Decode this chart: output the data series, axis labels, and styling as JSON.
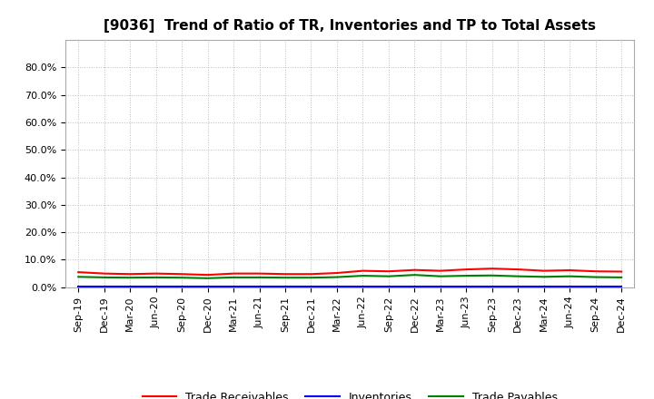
{
  "title": "[9036]  Trend of Ratio of TR, Inventories and TP to Total Assets",
  "x_labels": [
    "Sep-19",
    "Dec-19",
    "Mar-20",
    "Jun-20",
    "Sep-20",
    "Dec-20",
    "Mar-21",
    "Jun-21",
    "Sep-21",
    "Dec-21",
    "Mar-22",
    "Jun-22",
    "Sep-22",
    "Dec-22",
    "Mar-23",
    "Jun-23",
    "Sep-23",
    "Dec-23",
    "Mar-24",
    "Jun-24",
    "Sep-24",
    "Dec-24"
  ],
  "trade_receivables": [
    0.055,
    0.05,
    0.048,
    0.05,
    0.048,
    0.045,
    0.05,
    0.05,
    0.048,
    0.048,
    0.052,
    0.06,
    0.058,
    0.063,
    0.06,
    0.065,
    0.068,
    0.065,
    0.06,
    0.062,
    0.058,
    0.057
  ],
  "inventories": [
    0.002,
    0.002,
    0.002,
    0.002,
    0.002,
    0.002,
    0.002,
    0.002,
    0.002,
    0.002,
    0.002,
    0.002,
    0.002,
    0.002,
    0.002,
    0.002,
    0.002,
    0.002,
    0.002,
    0.002,
    0.002,
    0.002
  ],
  "trade_payables": [
    0.038,
    0.036,
    0.035,
    0.036,
    0.035,
    0.033,
    0.036,
    0.036,
    0.035,
    0.035,
    0.037,
    0.042,
    0.04,
    0.045,
    0.04,
    0.042,
    0.043,
    0.04,
    0.038,
    0.04,
    0.037,
    0.036
  ],
  "tr_color": "#ff0000",
  "inv_color": "#0000ff",
  "tp_color": "#008000",
  "ylim": [
    0.0,
    0.9
  ],
  "yticks": [
    0.0,
    0.1,
    0.2,
    0.3,
    0.4,
    0.5,
    0.6,
    0.7,
    0.8
  ],
  "background_color": "#ffffff",
  "grid_color": "#bbbbbb",
  "title_fontsize": 11,
  "tick_fontsize": 8,
  "legend_fontsize": 9
}
